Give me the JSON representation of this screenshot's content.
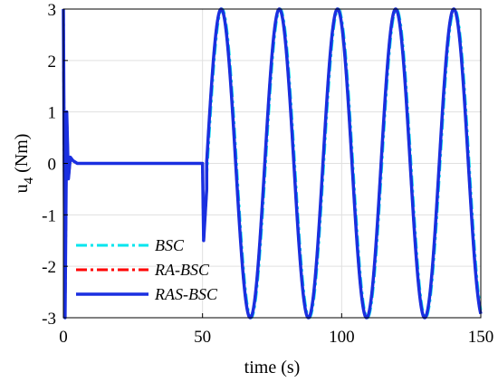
{
  "chart_data": {
    "type": "line",
    "title": "",
    "xlabel": "time (s)",
    "ylabel": "u",
    "ylabel_sub": "4",
    "ylabel_unit": " (Nm)",
    "xlim": [
      0,
      150
    ],
    "ylim": [
      -3,
      3
    ],
    "xticks": [
      0,
      50,
      100,
      150
    ],
    "yticks": [
      -3,
      -2,
      -1,
      0,
      1,
      2,
      3
    ],
    "grid": true,
    "legend_position": "bottom-left",
    "series": [
      {
        "name": "BSC",
        "color": "#00e5ee",
        "style": "dash-dot",
        "segments": [
          {
            "kind": "transient",
            "t_start": 0,
            "t_end": 50,
            "points": [
              [
                0,
                3
              ],
              [
                0.6,
                -3
              ],
              [
                1.2,
                1.0
              ],
              [
                1.8,
                -0.3
              ],
              [
                2.5,
                0.1
              ],
              [
                3.5,
                0.05
              ],
              [
                5,
                0
              ],
              [
                50,
                0
              ],
              [
                50.4,
                -1.5
              ],
              [
                51.5,
                -0.5
              ]
            ]
          },
          {
            "kind": "sine",
            "t_start": 51.5,
            "t_end": 150,
            "amplitude": 3,
            "period": 20.9,
            "peak_time": 57.0,
            "offset": 0
          }
        ]
      },
      {
        "name": "RA-BSC",
        "color": "#ff0000",
        "style": "dash-dot",
        "segments": [
          {
            "kind": "transient",
            "t_start": 0,
            "t_end": 50,
            "points": [
              [
                0,
                3
              ],
              [
                0.6,
                -3
              ],
              [
                1.2,
                1.0
              ],
              [
                1.8,
                -0.3
              ],
              [
                2.5,
                0.1
              ],
              [
                3.5,
                0.05
              ],
              [
                5,
                0
              ],
              [
                50,
                0
              ],
              [
                50.4,
                -1.5
              ],
              [
                51.5,
                -0.5
              ]
            ]
          },
          {
            "kind": "sine",
            "t_start": 51.5,
            "t_end": 150,
            "amplitude": 3,
            "period": 20.9,
            "peak_time": 56.7,
            "offset": 0
          }
        ]
      },
      {
        "name": "RAS-BSC",
        "color": "#1a2fe0",
        "style": "solid",
        "segments": [
          {
            "kind": "transient",
            "t_start": 0,
            "t_end": 50,
            "points": [
              [
                0,
                3
              ],
              [
                0.6,
                -3
              ],
              [
                1.2,
                1.0
              ],
              [
                1.8,
                -0.3
              ],
              [
                2.5,
                0.12
              ],
              [
                3.5,
                0.05
              ],
              [
                5,
                0
              ],
              [
                50,
                0
              ],
              [
                50.4,
                -1.5
              ],
              [
                51.5,
                -0.5
              ]
            ]
          },
          {
            "kind": "sine",
            "t_start": 51.5,
            "t_end": 150,
            "amplitude": 3,
            "period": 20.9,
            "peak_time": 56.7,
            "offset": 0
          }
        ]
      }
    ]
  }
}
